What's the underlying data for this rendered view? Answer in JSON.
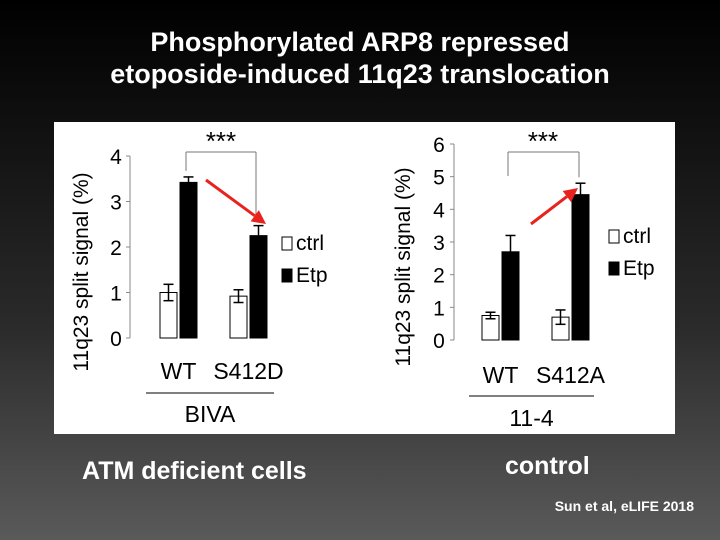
{
  "slide": {
    "title_line1": "Phosphorylated ARP8 repressed",
    "title_line2": "etoposide-induced 11q23 translocation",
    "caption_left": "ATM deficient cells",
    "caption_right": "control",
    "citation": "Sun et al, eLIFE 2018"
  },
  "colors": {
    "ctrl_fill": "#ffffff",
    "etp_fill": "#000000",
    "arrow": "#e8221c"
  },
  "chart_data": [
    {
      "type": "bar",
      "ylabel": "11q23 split signal (%)",
      "ylim": [
        0,
        4
      ],
      "yticks": [
        "0",
        "1",
        "2",
        "3",
        "4"
      ],
      "categories": [
        "WT",
        "S412D"
      ],
      "group_label": "BIVA",
      "significance": "***",
      "legend": [
        "ctrl",
        "Etp"
      ],
      "series": [
        {
          "name": "ctrl",
          "values": [
            1.0,
            0.92
          ],
          "errors": [
            0.18,
            0.14
          ]
        },
        {
          "name": "Etp",
          "values": [
            3.42,
            2.25
          ],
          "errors": [
            0.12,
            0.22
          ]
        }
      ],
      "annotation": "arrow-down"
    },
    {
      "type": "bar",
      "ylabel": "11q23 split signal (%)",
      "ylim": [
        0,
        6
      ],
      "yticks": [
        "0",
        "1",
        "2",
        "3",
        "4",
        "5",
        "6"
      ],
      "categories": [
        "WT",
        "S412A"
      ],
      "group_label": "11-4",
      "significance": "***",
      "legend": [
        "ctrl",
        "Etp"
      ],
      "series": [
        {
          "name": "ctrl",
          "values": [
            0.75,
            0.7
          ],
          "errors": [
            0.1,
            0.22
          ]
        },
        {
          "name": "Etp",
          "values": [
            2.7,
            4.45
          ],
          "errors": [
            0.5,
            0.35
          ]
        }
      ],
      "annotation": "arrow-up"
    }
  ]
}
